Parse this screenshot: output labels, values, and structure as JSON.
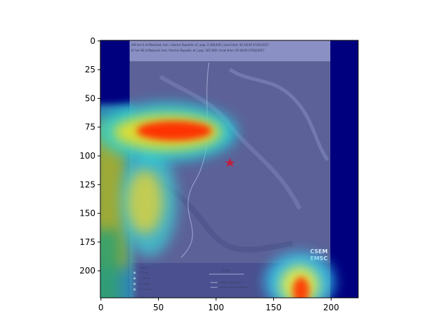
{
  "chart_data": {
    "type": "heatmap",
    "title": "",
    "xlabel": "",
    "ylabel": "",
    "xlim": [
      -0.5,
      223.5
    ],
    "ylim": [
      223.5,
      -0.5
    ],
    "x_ticks": [
      0,
      50,
      100,
      150,
      200
    ],
    "y_ticks": [
      0,
      25,
      50,
      75,
      100,
      125,
      150,
      175,
      200
    ],
    "x_tick_labels": [
      "0",
      "50",
      "100",
      "150",
      "200"
    ],
    "y_tick_labels": [
      "0",
      "25",
      "50",
      "75",
      "100",
      "125",
      "150",
      "175",
      "200"
    ],
    "grid": false,
    "colormap": "jet",
    "background_image": "seismic map screenshot (EMSC)",
    "map_image_extent": {
      "x": [
        25,
        200
      ],
      "y": [
        0,
        224
      ]
    },
    "heat_peaks": [
      {
        "x": 52,
        "y": 78,
        "intensity": 0.95
      },
      {
        "x": 75,
        "y": 78,
        "intensity": 0.9
      },
      {
        "x": 8,
        "y": 120,
        "intensity": 0.65
      },
      {
        "x": 40,
        "y": 140,
        "intensity": 0.6
      },
      {
        "x": 174,
        "y": 212,
        "intensity": 0.9
      }
    ],
    "colors": {
      "cold": "#00007f",
      "warm": "#ff2000",
      "hot_yellow": "#ffe000"
    }
  },
  "map": {
    "header_line_1": "166 km E of Mashhad, Iran / Islamic Republic of  |  pop: 2,308,000  |  local time: 05:18:00 07/02/2017",
    "header_line_2": "47 km SE of Bojnurd, Iran / Islamic Republic of  |  pop: 187,000  |  local time: 05:18:00 07/02/2017",
    "legend_title": "Depth",
    "legend_items": [
      "0 - 15 km",
      "15 - 30 km",
      "30 - 70 km",
      "70 - 150 km"
    ],
    "scale_label": "100 km",
    "boundary_items": [
      "Political boundaries",
      "Tectonic plate boundaries"
    ],
    "logo": [
      "CSEM",
      "EMSC"
    ]
  }
}
